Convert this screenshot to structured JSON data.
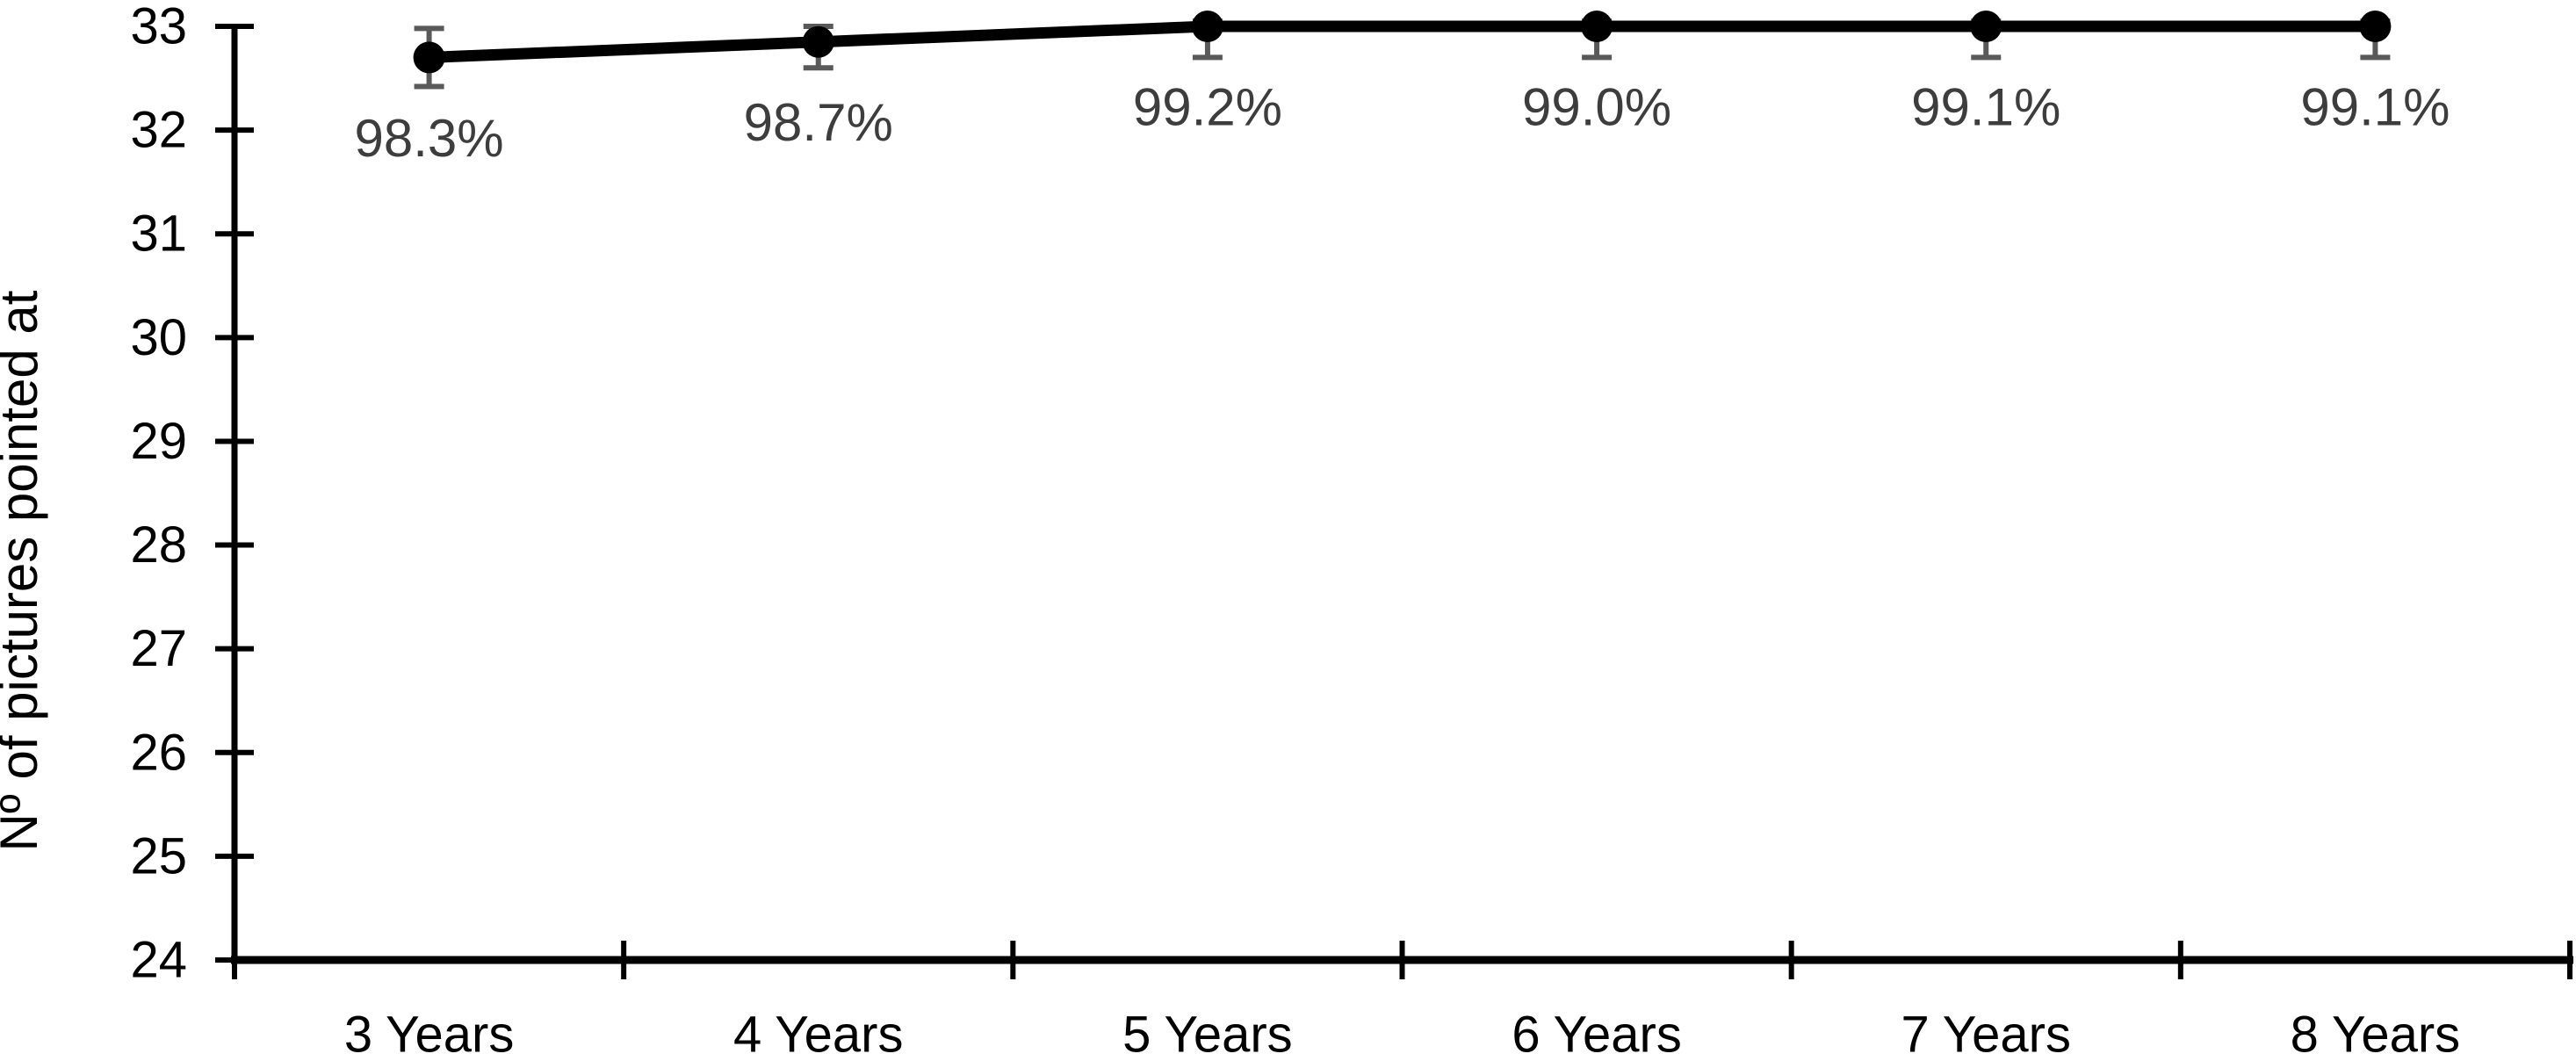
{
  "chart_data": {
    "type": "line",
    "title": "",
    "xlabel": "",
    "ylabel": "Nº of pictures pointed at",
    "categories": [
      "3 Years",
      "4 Years",
      "5 Years",
      "6 Years",
      "7 Years",
      "8 Years"
    ],
    "series": [
      {
        "name": "Nº of pictures pointed at",
        "values": [
          32.7,
          32.85,
          33.0,
          33.0,
          33.0,
          33.0
        ],
        "point_labels": [
          "98.3%",
          "98.7%",
          "99.2%",
          "99.0%",
          "99.1%",
          "99.1%"
        ],
        "error_minus": [
          0.28,
          0.25,
          0.3,
          0.3,
          0.3,
          0.3
        ],
        "error_plus": [
          0.28,
          0.15,
          0.05,
          0.05,
          0.05,
          0.05
        ]
      }
    ],
    "ylim": [
      24,
      33
    ],
    "ytick_step": 1,
    "yticks": [
      24,
      25,
      26,
      27,
      28,
      29,
      30,
      31,
      32,
      33
    ],
    "grid": false,
    "legend": false,
    "marker": "circle",
    "colors": {
      "series_line": "#000000",
      "marker": "#000000",
      "error_bar": "#595959",
      "point_label": "#3d3d3d",
      "axis": "#000000",
      "tick_label": "#000000",
      "axis_title": "#000000"
    }
  }
}
